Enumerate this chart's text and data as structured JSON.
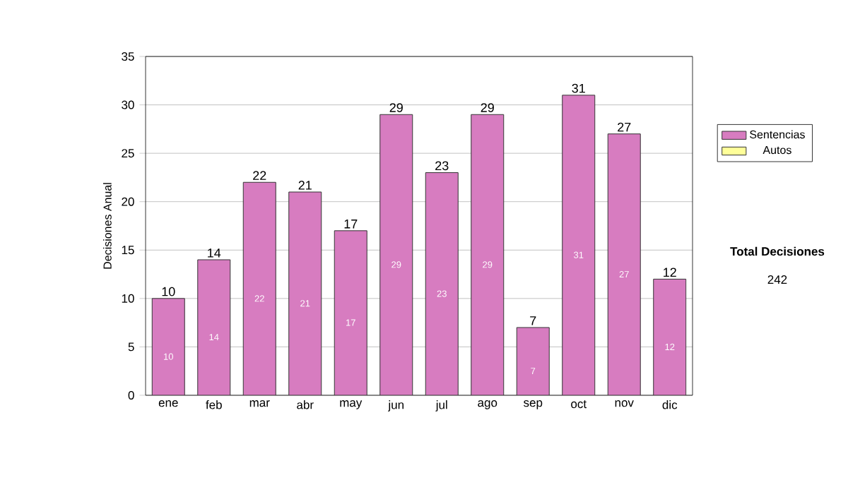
{
  "chart_data": {
    "type": "bar",
    "stacked": true,
    "ylabel": "Decisiones Anual",
    "categories": [
      "ene",
      "feb",
      "mar",
      "abr",
      "may",
      "jun",
      "jul",
      "ago",
      "sep",
      "oct",
      "nov",
      "dic"
    ],
    "series": [
      {
        "name": "Sentencias",
        "color": "#d77cc0",
        "values": [
          10,
          14,
          22,
          21,
          17,
          29,
          23,
          29,
          7,
          31,
          27,
          12
        ]
      },
      {
        "name": "Autos",
        "color": "#ffff99",
        "values": [
          null,
          null,
          null,
          null,
          null,
          null,
          null,
          null,
          null,
          null,
          null,
          null
        ]
      }
    ],
    "totals": [
      "10",
      "14",
      "22",
      "21",
      "17",
      "29",
      "23",
      "29",
      "7",
      "31",
      "27",
      "12"
    ],
    "data_labels": true,
    "ylim": [
      0,
      35
    ],
    "yticks": [
      0,
      5,
      10,
      15,
      20,
      25,
      30,
      35
    ],
    "grid": "y",
    "legend": "right",
    "annotations": [
      "Total Decisiones",
      "242"
    ]
  }
}
